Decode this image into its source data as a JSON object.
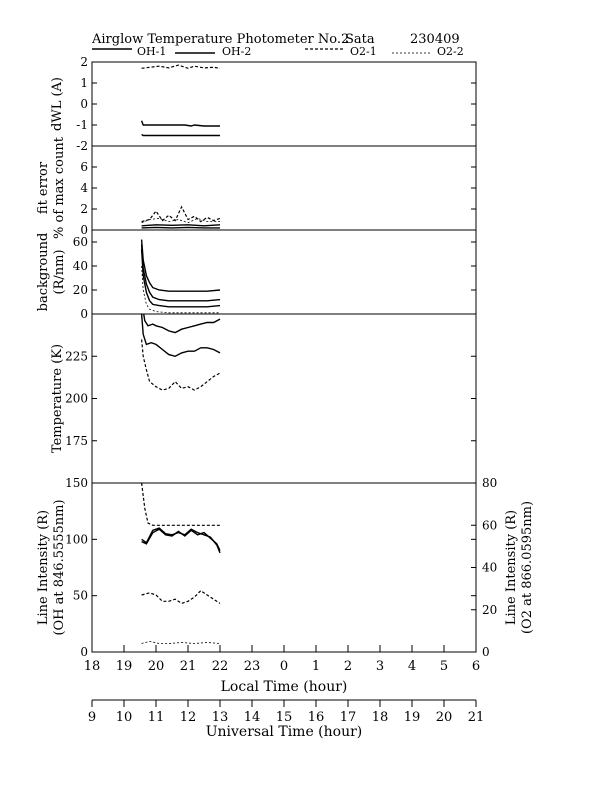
{
  "header": {
    "title": "Airglow Temperature Photometer No.2",
    "site": "Sata",
    "date": "230409"
  },
  "legend": [
    {
      "name": "OH-1",
      "dash": "solid",
      "width": 1.4
    },
    {
      "name": "OH-2",
      "dash": "solid",
      "width": 1.4
    },
    {
      "name": "O2-1",
      "dash": "3,2",
      "width": 1.2
    },
    {
      "name": "O2-2",
      "dash": "2,2",
      "width": 0.8
    }
  ],
  "chart_data": [
    {
      "type": "line",
      "ylabel": "dWL (A)",
      "ylim": [
        -2,
        2
      ],
      "yticks": [
        -2,
        -1,
        0,
        1,
        2
      ],
      "series": [
        {
          "ref": "O2-1",
          "x": [
            19.55,
            19.8,
            20.1,
            20.4,
            20.7,
            21.0,
            21.2,
            21.5,
            21.8,
            22.0
          ],
          "y": [
            1.7,
            1.75,
            1.8,
            1.72,
            1.85,
            1.7,
            1.8,
            1.72,
            1.75,
            1.7
          ]
        },
        {
          "ref": "OH-1",
          "x": [
            19.55,
            19.6,
            19.8,
            20.1,
            20.5,
            20.9,
            21.1,
            21.2,
            21.5,
            22.0
          ],
          "y": [
            -0.8,
            -1.0,
            -1.0,
            -1.0,
            -1.0,
            -1.0,
            -1.05,
            -1.0,
            -1.05,
            -1.05
          ]
        },
        {
          "ref": "OH-2",
          "x": [
            19.55,
            19.6,
            20.0,
            20.5,
            21.0,
            21.5,
            22.0
          ],
          "y": [
            -1.45,
            -1.5,
            -1.5,
            -1.5,
            -1.5,
            -1.5,
            -1.5
          ]
        }
      ]
    },
    {
      "type": "line",
      "ylabel": "fit error",
      "ylabel2": "% of max count",
      "ylim": [
        0,
        8
      ],
      "yticks": [
        0,
        2,
        4,
        6
      ],
      "series": [
        {
          "ref": "O2-1",
          "x": [
            19.55,
            19.8,
            20.0,
            20.2,
            20.4,
            20.6,
            20.8,
            21.0,
            21.2,
            21.4,
            21.6,
            21.8,
            22.0
          ],
          "y": [
            0.8,
            1.0,
            1.8,
            0.9,
            1.4,
            0.9,
            2.2,
            1.0,
            1.3,
            0.8,
            1.2,
            0.9,
            1.1
          ]
        },
        {
          "ref": "O2-2",
          "x": [
            19.55,
            19.8,
            20.1,
            20.4,
            20.7,
            21.0,
            21.3,
            21.6,
            22.0
          ],
          "y": [
            0.7,
            1.0,
            1.1,
            0.8,
            1.0,
            0.7,
            1.1,
            0.8,
            0.8
          ]
        },
        {
          "ref": "OH-1",
          "x": [
            19.55,
            20.0,
            20.5,
            21.0,
            21.5,
            22.0
          ],
          "y": [
            0.4,
            0.5,
            0.45,
            0.5,
            0.4,
            0.5
          ]
        },
        {
          "ref": "OH-2",
          "x": [
            19.55,
            20.0,
            20.5,
            21.0,
            21.5,
            22.0
          ],
          "y": [
            0.2,
            0.25,
            0.2,
            0.25,
            0.2,
            0.2
          ]
        }
      ]
    },
    {
      "type": "line",
      "ylabel": "background",
      "ylabel2": "(R/nm)",
      "ylim": [
        0,
        70
      ],
      "yticks": [
        0,
        20,
        40,
        60
      ],
      "series": [
        {
          "ref": "OH-1",
          "x": [
            19.55,
            19.6,
            19.7,
            19.8,
            19.9,
            20.1,
            20.4,
            20.8,
            21.2,
            21.6,
            22.0
          ],
          "y": [
            62,
            45,
            32,
            26,
            22,
            20,
            19,
            19,
            19,
            19,
            20
          ]
        },
        {
          "ref": "OH-2",
          "x": [
            19.55,
            19.6,
            19.7,
            19.8,
            19.9,
            20.1,
            20.4,
            20.8,
            21.2,
            21.6,
            22.0
          ],
          "y": [
            58,
            38,
            25,
            18,
            14,
            12,
            11,
            11,
            11,
            11,
            12
          ]
        },
        {
          "ref": "OH-1",
          "x": [
            19.55,
            19.6,
            19.7,
            19.8,
            19.9,
            20.1,
            20.4,
            20.8,
            21.2,
            21.6,
            22.0
          ],
          "y": [
            54,
            32,
            18,
            11,
            8,
            7,
            6,
            6,
            6,
            6,
            7
          ]
        },
        {
          "ref": "O2-2",
          "x": [
            19.55,
            19.6,
            19.7,
            19.8,
            20.0,
            20.4,
            20.8,
            21.2,
            21.6,
            22.0
          ],
          "y": [
            40,
            20,
            8,
            4,
            2,
            1,
            1,
            1,
            1,
            1
          ]
        }
      ]
    },
    {
      "type": "line",
      "ylabel": "Temperature (K)",
      "ylim": [
        150,
        250
      ],
      "yticks": [
        175,
        200,
        225
      ],
      "series": [
        {
          "ref": "OH-1",
          "x": [
            19.55,
            19.65,
            19.75,
            19.9,
            20.0,
            20.2,
            20.4,
            20.6,
            20.8,
            21.0,
            21.2,
            21.4,
            21.6,
            21.8,
            22.0
          ],
          "y": [
            258,
            246,
            243,
            244,
            243,
            242,
            240,
            239,
            241,
            242,
            243,
            244,
            245,
            245,
            247
          ]
        },
        {
          "ref": "OH-2",
          "x": [
            19.55,
            19.6,
            19.7,
            19.85,
            20.0,
            20.2,
            20.4,
            20.6,
            20.8,
            21.0,
            21.2,
            21.4,
            21.6,
            21.8,
            22.0
          ],
          "y": [
            250,
            238,
            232,
            233,
            232,
            229,
            226,
            225,
            227,
            228,
            228,
            230,
            230,
            229,
            227
          ]
        },
        {
          "ref": "O2-1",
          "x": [
            19.55,
            19.6,
            19.7,
            19.8,
            20.0,
            20.2,
            20.4,
            20.6,
            20.8,
            21.0,
            21.2,
            21.4,
            21.6,
            21.8,
            22.0
          ],
          "y": [
            235,
            225,
            217,
            210,
            207,
            205,
            206,
            210,
            206,
            207,
            205,
            207,
            210,
            213,
            215
          ]
        }
      ]
    },
    {
      "type": "line",
      "ylabel": "Line Intensity (R)",
      "ylabel2": "(OH at 846.5555nm)",
      "ylabel_right": "Line Intensity (R)",
      "ylabel_right2": "(O2 at 866.0595nm)",
      "xlabel": "Local Time (hour)",
      "xlabel2": "Universal Time (hour)",
      "ylim": [
        0,
        150
      ],
      "yticks": [
        0,
        50,
        100,
        150
      ],
      "ylim_right": [
        0,
        80
      ],
      "yticks_right": [
        0,
        20,
        40,
        60,
        80
      ],
      "xticks_local": [
        "18",
        "19",
        "20",
        "21",
        "22",
        "23",
        "0",
        "1",
        "2",
        "3",
        "4",
        "5",
        "6"
      ],
      "xticks_ut": [
        "9",
        "10",
        "11",
        "12",
        "13",
        "14",
        "15",
        "16",
        "17",
        "18",
        "19",
        "20",
        "21"
      ],
      "series": [
        {
          "ref": "O2-1",
          "axis": "right",
          "x": [
            19.55,
            19.65,
            19.75,
            19.9,
            20.2,
            20.6,
            21.0,
            21.4,
            21.8,
            22.0
          ],
          "y": [
            80,
            68,
            61,
            60,
            60,
            60,
            60,
            60,
            60,
            60
          ]
        },
        {
          "ref": "OH-1",
          "x": [
            19.55,
            19.7,
            19.9,
            20.1,
            20.3,
            20.5,
            20.7,
            20.9,
            21.1,
            21.3,
            21.5,
            21.7,
            21.9,
            22.0
          ],
          "y": [
            98,
            96,
            106,
            109,
            104,
            103,
            107,
            103,
            108,
            104,
            106,
            101,
            96,
            90
          ]
        },
        {
          "ref": "OH-2",
          "x": [
            19.55,
            19.7,
            19.9,
            20.1,
            20.3,
            20.5,
            20.7,
            20.9,
            21.1,
            21.3,
            21.5,
            21.7,
            21.9,
            22.0
          ],
          "y": [
            100,
            97,
            108,
            110,
            105,
            104,
            106,
            104,
            109,
            106,
            104,
            102,
            95,
            88
          ]
        },
        {
          "ref": "O2-1",
          "axis": "right",
          "x": [
            19.55,
            19.8,
            20.0,
            20.2,
            20.4,
            20.6,
            20.8,
            21.0,
            21.2,
            21.4,
            21.6,
            21.8,
            22.0
          ],
          "y": [
            27,
            28,
            27,
            24,
            24,
            25,
            23,
            24,
            26,
            29,
            27,
            25,
            23
          ]
        },
        {
          "ref": "O2-2",
          "axis": "right",
          "x": [
            19.55,
            19.8,
            20.1,
            20.4,
            20.8,
            21.2,
            21.6,
            22.0
          ],
          "y": [
            4,
            5,
            4,
            4,
            4.5,
            4,
            4.5,
            4
          ]
        }
      ]
    }
  ]
}
